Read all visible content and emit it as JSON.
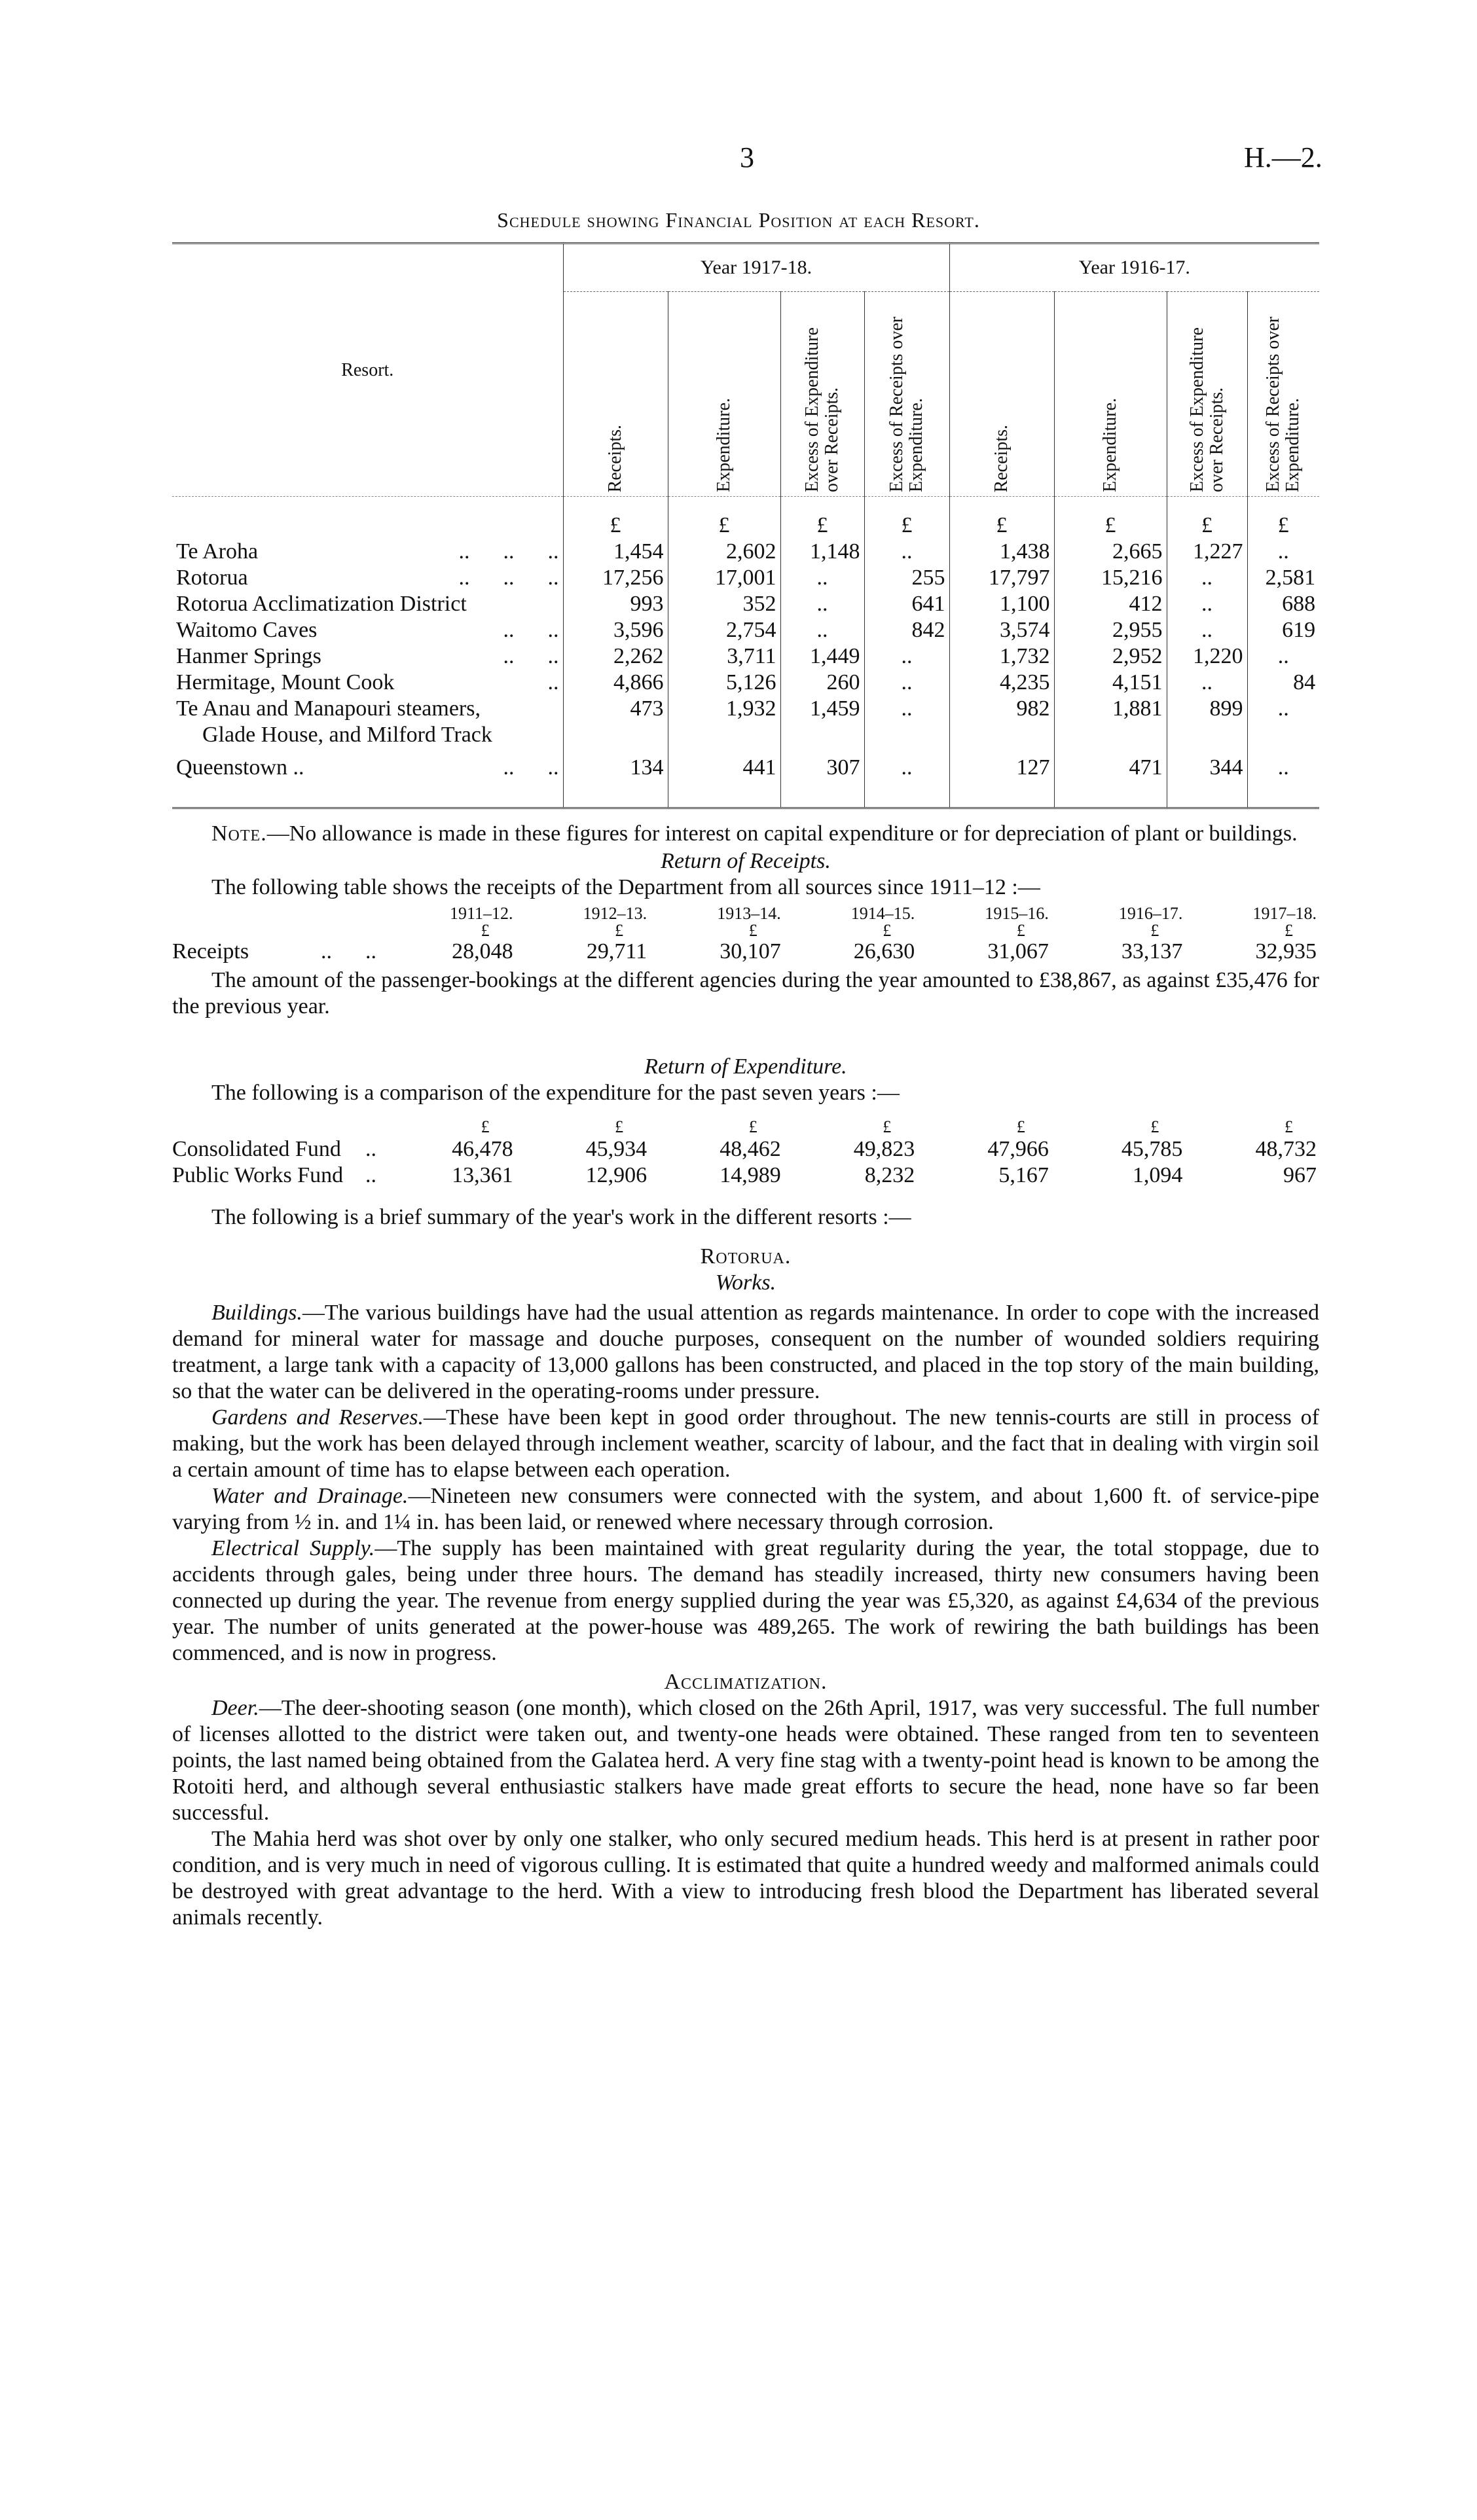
{
  "header": {
    "page_number": "3",
    "reference": "H.—2.",
    "title": "Schedule showing Financial Position at each Resort."
  },
  "schedule": {
    "resort_label": "Resort.",
    "year_groups": [
      "Year 1917-18.",
      "Year 1916-17."
    ],
    "columns": [
      "Receipts.",
      "Expenditure.",
      "Excess of Expenditure over Receipts.",
      "Excess of Receipts over Expenditure.",
      "Receipts.",
      "Expenditure.",
      "Excess of Expenditure over Receipts.",
      "Excess of Receipts over Expenditure."
    ],
    "currency": "£",
    "rows": [
      {
        "name": "Te Aroha",
        "dots": "..      ..      ..",
        "values": [
          "1,454",
          "2,602",
          "1,148",
          "..",
          "1,438",
          "2,665",
          "1,227",
          ".."
        ]
      },
      {
        "name": "Rotorua",
        "dots": "..      ..      ..",
        "values": [
          "17,256",
          "17,001",
          "..",
          "255",
          "17,797",
          "15,216",
          "..",
          "2,581"
        ]
      },
      {
        "name": "Rotorua Acclimatization District",
        "dots": "",
        "values": [
          "993",
          "352",
          "..",
          "641",
          "1,100",
          "412",
          "..",
          "688"
        ]
      },
      {
        "name": "Waitomo Caves",
        "dots": "..      ..",
        "values": [
          "3,596",
          "2,754",
          "..",
          "842",
          "3,574",
          "2,955",
          "..",
          "619"
        ]
      },
      {
        "name": "Hanmer Springs",
        "dots": "..      ..",
        "values": [
          "2,262",
          "3,711",
          "1,449",
          "..",
          "1,732",
          "2,952",
          "1,220",
          ".."
        ]
      },
      {
        "name": "Hermitage, Mount Cook",
        "dots": "..",
        "values": [
          "4,866",
          "5,126",
          "260",
          "..",
          "4,235",
          "4,151",
          "..",
          "84"
        ]
      },
      {
        "name": "Te Anau and Manapouri steamers,",
        "name2": "Glade House, and Milford Track",
        "dots": "",
        "values": [
          "473",
          "1,932",
          "1,459",
          "..",
          "982",
          "1,881",
          "899",
          ".."
        ]
      },
      {
        "name": "Queenstown ..",
        "dots": "..      ..",
        "values": [
          "134",
          "441",
          "307",
          "..",
          "127",
          "471",
          "344",
          ".."
        ]
      }
    ]
  },
  "note": {
    "lead": "Note.",
    "text": "—No allowance is made in these figures for interest on capital expenditure or for depreciation of plant or buildings."
  },
  "receipts": {
    "heading": "Return of Receipts.",
    "intro": "The following table shows the receipts of the Department from all sources since 1911–12 :—",
    "years": [
      "1911–12.",
      "1912–13.",
      "1913–14.",
      "1914–15.",
      "1915–16.",
      "1916–17.",
      "1917–18."
    ],
    "currency": "£",
    "row_label": "Receipts",
    "row_dots": "..      ..",
    "values": [
      "28,048",
      "29,711",
      "30,107",
      "26,630",
      "31,067",
      "33,137",
      "32,935"
    ],
    "bookings": "The amount of the passenger-bookings at the different agencies during the year amounted to £38,867, as against £35,476 for the previous year."
  },
  "expenditure": {
    "heading": "Return of Expenditure.",
    "intro": "The following is a comparison of the expenditure for the past seven years :—",
    "currency": "£",
    "rows": [
      {
        "label": "Consolidated Fund",
        "dots": "..",
        "values": [
          "46,478",
          "45,934",
          "48,462",
          "49,823",
          "47,966",
          "45,785",
          "48,732"
        ]
      },
      {
        "label": "Public Works Fund",
        "dots": "..",
        "values": [
          "13,361",
          "12,906",
          "14,989",
          "8,232",
          "5,167",
          "1,094",
          "967"
        ]
      }
    ],
    "summary": "The following is a brief summary of the year's work in the different resorts :—"
  },
  "rotorua": {
    "heading": "Rotorua.",
    "subheading": "Works.",
    "paragraphs": [
      {
        "lead": "Buildings.",
        "text": "—The various buildings have had the usual attention as regards maintenance. In order to cope with the increased demand for mineral water for massage and douche purposes, consequent on the number of wounded soldiers requiring treatment, a large tank with a capacity of 13,000 gallons has been constructed, and placed in the top story of the main building, so that the water can be delivered in the operating-rooms under pressure."
      },
      {
        "lead": "Gardens and Reserves.",
        "text": "—These have been kept in good order throughout. The new tennis-courts are still in process of making, but the work has been delayed through inclement weather, scarcity of labour, and the fact that in dealing with virgin soil a certain amount of time has to elapse between each operation."
      },
      {
        "lead": "Water and Drainage.",
        "text": "—Nineteen new consumers were connected with the system, and about 1,600 ft. of service-pipe varying from ½ in. and 1¼ in. has been laid, or renewed where necessary through corrosion."
      },
      {
        "lead": "Electrical Supply.",
        "text": "—The supply has been maintained with great regularity during the year, the total stoppage, due to accidents through gales, being under three hours. The demand has steadily increased, thirty new consumers having been connected up during the year. The revenue from energy supplied during the year was £5,320, as against £4,634 of the previous year. The number of units generated at the power-house was 489,265. The work of rewiring the bath buildings has been commenced, and is now in progress."
      }
    ]
  },
  "acclimatization": {
    "heading": "Acclimatization.",
    "paragraphs": [
      {
        "lead": "Deer.",
        "text": "—The deer-shooting season (one month), which closed on the 26th April, 1917, was very successful. The full number of licenses allotted to the district were taken out, and twenty-one heads were obtained. These ranged from ten to seventeen points, the last named being obtained from the Galatea herd. A very fine stag with a twenty-point head is known to be among the Rotoiti herd, and although several enthusiastic stalkers have made great efforts to secure the head, none have so far been successful."
      },
      {
        "lead": "",
        "text": "The Mahia herd was shot over by only one stalker, who only secured medium heads. This herd is at present in rather poor condition, and is very much in need of vigorous culling. It is estimated that quite a hundred weedy and malformed animals could be destroyed with great advantage to the herd. With a view to introducing fresh blood the Department has liberated several animals recently."
      }
    ]
  }
}
